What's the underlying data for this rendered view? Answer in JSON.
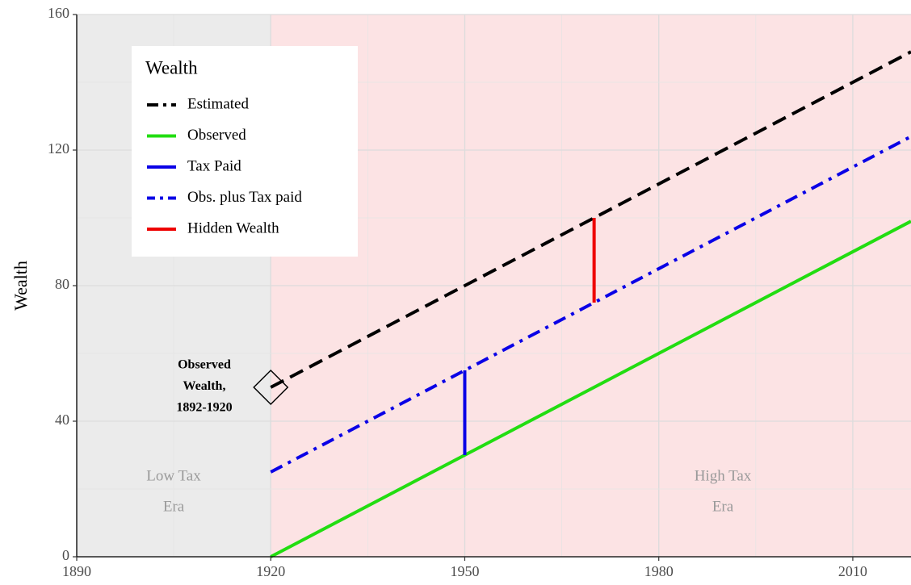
{
  "chart_data": {
    "type": "line",
    "y_label": "Wealth",
    "xlim": [
      1890,
      2019
    ],
    "ylim": [
      0,
      160
    ],
    "xticks": [
      1890,
      1920,
      1950,
      1980,
      2010
    ],
    "yticks": [
      0,
      40,
      80,
      120,
      160
    ],
    "grid": true,
    "legend": {
      "title": "Wealth",
      "position": "top-left"
    },
    "shaded_regions": [
      {
        "start": 1890,
        "end": 1920,
        "color": "#ebebeb",
        "label": [
          "Low Tax",
          "Era"
        ]
      },
      {
        "start": 1920,
        "end": 2019,
        "color": "#fce3e4",
        "label": [
          "High Tax",
          "Era"
        ]
      }
    ],
    "series": [
      {
        "name": "Estimated",
        "color": "#000000",
        "dash": "dashed",
        "x": [
          1920,
          2019
        ],
        "values": [
          50,
          149
        ]
      },
      {
        "name": "Observed",
        "color": "#22dd11",
        "dash": "solid",
        "x": [
          1920,
          2019
        ],
        "values": [
          0,
          99
        ]
      },
      {
        "name": "Tax Paid",
        "color": "#0a00e6",
        "dash": "solid",
        "x": [
          1950,
          1950
        ],
        "values": [
          30,
          55
        ]
      },
      {
        "name": "Obs. plus Tax paid",
        "color": "#0a00e6",
        "dash": "dotdash",
        "x": [
          1920,
          2019
        ],
        "values": [
          25,
          124
        ]
      },
      {
        "name": "Hidden Wealth",
        "color": "#ee0000",
        "dash": "solid",
        "x": [
          1970,
          1970
        ],
        "values": [
          75,
          100
        ]
      }
    ],
    "points": [
      {
        "x": 1920,
        "y": 50,
        "marker": "diamond"
      }
    ],
    "annotation": [
      "Observed",
      "Wealth,",
      "1892-1920"
    ]
  }
}
